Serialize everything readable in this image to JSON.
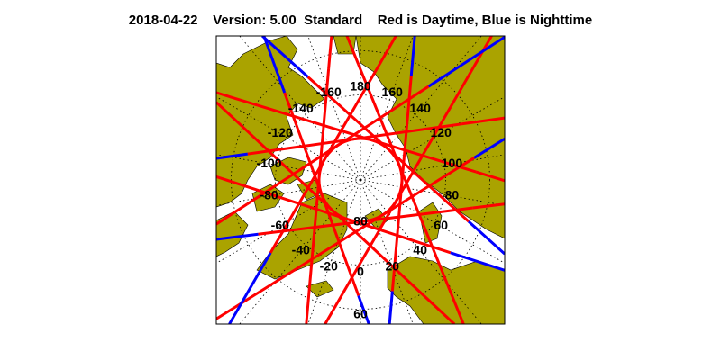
{
  "header": {
    "date": "2018-04-22",
    "version": "Version: 5.00",
    "mode": "Standard",
    "legend_text": "Red is Daytime, Blue is Nighttime"
  },
  "map": {
    "projection": "north-polar-stereographic",
    "colors": {
      "land": "#aaa300",
      "ocean": "#ffffff",
      "daytime": "#ff0000",
      "nighttime": "#0000ff",
      "grid": "#000000"
    },
    "longitude_labels": [
      "0",
      "20",
      "40",
      "60",
      "80",
      "100",
      "120",
      "140",
      "160",
      "180",
      "-160",
      "-140",
      "-120",
      "-100",
      "-80",
      "-60",
      "-40",
      "-20"
    ],
    "latitude_labels": [
      "80",
      "60"
    ]
  }
}
